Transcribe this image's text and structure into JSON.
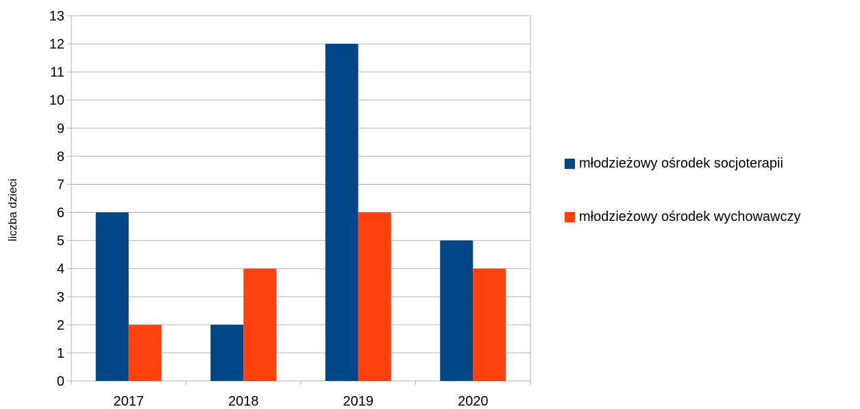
{
  "chart_data": {
    "type": "bar",
    "categories": [
      "2017",
      "2018",
      "2019",
      "2020"
    ],
    "series": [
      {
        "name": "młodzieżowy ośrodek socjoterapii",
        "values": [
          6,
          2,
          12,
          5
        ],
        "color": "#004586"
      },
      {
        "name": "młodzieżowy ośrodek wychowawczy",
        "values": [
          2,
          4,
          6,
          4
        ],
        "color": "#ff420e"
      }
    ],
    "title": "",
    "xlabel": "",
    "ylabel": "liczba dzieci",
    "ylim": [
      0,
      13
    ],
    "yticks": [
      "0",
      "1",
      "2",
      "3",
      "4",
      "5",
      "6",
      "7",
      "8",
      "9",
      "10",
      "11",
      "12",
      "13"
    ],
    "grid": true,
    "legend_position": "right"
  }
}
